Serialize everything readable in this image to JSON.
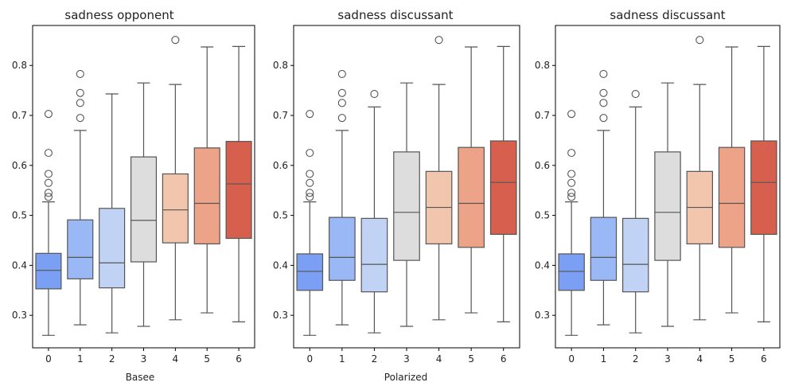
{
  "colors": {
    "box_fill": [
      "#7b9ff2",
      "#9ab8f5",
      "#c0d3f5",
      "#dddddd",
      "#f2c5ad",
      "#eda387",
      "#d6604d"
    ],
    "box_edge": "#555555",
    "axis": "#000000"
  },
  "chart_data": [
    {
      "type": "box",
      "title": "sadness opponent",
      "xlabel": "Basee",
      "ylabel": "",
      "categories": [
        "0",
        "1",
        "2",
        "3",
        "4",
        "5",
        "6"
      ],
      "ylim": [
        0.235,
        0.88
      ],
      "yticks": [
        0.3,
        0.4,
        0.5,
        0.6,
        0.7,
        0.8
      ],
      "ytick_labels": [
        "0.3",
        "0.4",
        "0.5",
        "0.6",
        "0.7",
        "0.8"
      ],
      "grid": false,
      "boxes": [
        {
          "whislo": 0.26,
          "q1": 0.353,
          "med": 0.39,
          "q3": 0.424,
          "whishi": 0.527,
          "fliers": [
            0.537,
            0.545,
            0.565,
            0.583,
            0.625,
            0.703
          ]
        },
        {
          "whislo": 0.281,
          "q1": 0.373,
          "med": 0.416,
          "q3": 0.491,
          "whishi": 0.67,
          "fliers": [
            0.695,
            0.725,
            0.745,
            0.783
          ]
        },
        {
          "whislo": 0.265,
          "q1": 0.355,
          "med": 0.405,
          "q3": 0.514,
          "whishi": 0.743,
          "fliers": []
        },
        {
          "whislo": 0.278,
          "q1": 0.407,
          "med": 0.49,
          "q3": 0.617,
          "whishi": 0.765,
          "fliers": []
        },
        {
          "whislo": 0.291,
          "q1": 0.445,
          "med": 0.511,
          "q3": 0.583,
          "whishi": 0.762,
          "fliers": [
            0.851
          ]
        },
        {
          "whislo": 0.305,
          "q1": 0.443,
          "med": 0.524,
          "q3": 0.635,
          "whishi": 0.837,
          "fliers": []
        },
        {
          "whislo": 0.287,
          "q1": 0.454,
          "med": 0.563,
          "q3": 0.648,
          "whishi": 0.838,
          "fliers": []
        }
      ]
    },
    {
      "type": "box",
      "title": "sadness discussant",
      "xlabel": "Polarized",
      "ylabel": "",
      "categories": [
        "0",
        "1",
        "2",
        "3",
        "4",
        "5",
        "6"
      ],
      "ylim": [
        0.235,
        0.88
      ],
      "yticks": [
        0.3,
        0.4,
        0.5,
        0.6,
        0.7,
        0.8
      ],
      "ytick_labels": [
        "0.3",
        "0.4",
        "0.5",
        "0.6",
        "0.7",
        "0.8"
      ],
      "grid": false,
      "boxes": [
        {
          "whislo": 0.26,
          "q1": 0.35,
          "med": 0.388,
          "q3": 0.423,
          "whishi": 0.527,
          "fliers": [
            0.537,
            0.545,
            0.565,
            0.583,
            0.625,
            0.703
          ]
        },
        {
          "whislo": 0.281,
          "q1": 0.37,
          "med": 0.416,
          "q3": 0.496,
          "whishi": 0.67,
          "fliers": [
            0.695,
            0.725,
            0.745,
            0.783
          ]
        },
        {
          "whislo": 0.265,
          "q1": 0.347,
          "med": 0.402,
          "q3": 0.494,
          "whishi": 0.717,
          "fliers": [
            0.743
          ]
        },
        {
          "whislo": 0.278,
          "q1": 0.41,
          "med": 0.506,
          "q3": 0.627,
          "whishi": 0.765,
          "fliers": []
        },
        {
          "whislo": 0.291,
          "q1": 0.443,
          "med": 0.516,
          "q3": 0.588,
          "whishi": 0.762,
          "fliers": [
            0.851
          ]
        },
        {
          "whislo": 0.305,
          "q1": 0.436,
          "med": 0.524,
          "q3": 0.636,
          "whishi": 0.837,
          "fliers": []
        },
        {
          "whislo": 0.287,
          "q1": 0.462,
          "med": 0.566,
          "q3": 0.649,
          "whishi": 0.838,
          "fliers": []
        }
      ]
    },
    {
      "type": "box",
      "title": "sadness discussant",
      "xlabel": "",
      "ylabel": "",
      "categories": [
        "0",
        "1",
        "2",
        "3",
        "4",
        "5",
        "6"
      ],
      "ylim": [
        0.235,
        0.88
      ],
      "yticks": [
        0.3,
        0.4,
        0.5,
        0.6,
        0.7,
        0.8
      ],
      "ytick_labels": [
        "0.3",
        "0.4",
        "0.5",
        "0.6",
        "0.7",
        "0.8"
      ],
      "grid": false,
      "boxes": [
        {
          "whislo": 0.26,
          "q1": 0.35,
          "med": 0.388,
          "q3": 0.423,
          "whishi": 0.527,
          "fliers": [
            0.537,
            0.545,
            0.565,
            0.583,
            0.625,
            0.703
          ]
        },
        {
          "whislo": 0.281,
          "q1": 0.37,
          "med": 0.416,
          "q3": 0.496,
          "whishi": 0.67,
          "fliers": [
            0.695,
            0.725,
            0.745,
            0.783
          ]
        },
        {
          "whislo": 0.265,
          "q1": 0.347,
          "med": 0.402,
          "q3": 0.494,
          "whishi": 0.717,
          "fliers": [
            0.743
          ]
        },
        {
          "whislo": 0.278,
          "q1": 0.41,
          "med": 0.506,
          "q3": 0.627,
          "whishi": 0.765,
          "fliers": []
        },
        {
          "whislo": 0.291,
          "q1": 0.443,
          "med": 0.516,
          "q3": 0.588,
          "whishi": 0.762,
          "fliers": [
            0.851
          ]
        },
        {
          "whislo": 0.305,
          "q1": 0.436,
          "med": 0.524,
          "q3": 0.636,
          "whishi": 0.837,
          "fliers": []
        },
        {
          "whislo": 0.287,
          "q1": 0.462,
          "med": 0.566,
          "q3": 0.649,
          "whishi": 0.838,
          "fliers": []
        }
      ]
    }
  ]
}
